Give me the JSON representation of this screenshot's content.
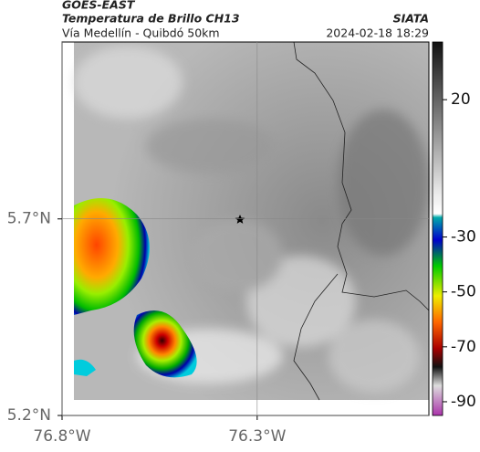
{
  "header": {
    "title": "GOES-EAST",
    "subtitle": "Temperatura de Brillo CH13",
    "source": "SIATA",
    "route": "Vía Medellín - Quibdó 50km",
    "datetime": "2024-02-18 18:29"
  },
  "map": {
    "xlim": [
      -76.8,
      -75.86
    ],
    "ylim": [
      5.2,
      6.15
    ],
    "xticks": [
      {
        "value": -76.8,
        "label": "76.8°W"
      },
      {
        "value": -76.3,
        "label": "76.3°W"
      }
    ],
    "yticks": [
      {
        "value": 5.7,
        "label": "5.7°N"
      },
      {
        "value": 5.2,
        "label": "5.2°N"
      }
    ]
  },
  "colorbar": {
    "lim": [
      41,
      -95
    ],
    "ticks": [
      20,
      -30,
      -50,
      -70,
      -90
    ]
  }
}
